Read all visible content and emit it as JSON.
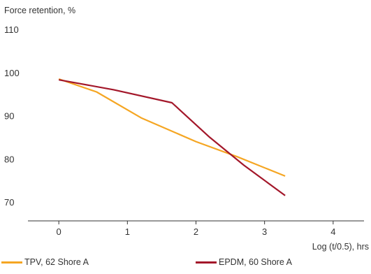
{
  "chart_data": {
    "type": "line",
    "title": "Force retention, %",
    "xlabel": "Log (t/0.5), hrs",
    "ylabel": "",
    "xlim": [
      -0.45,
      4.45
    ],
    "ylim": [
      64,
      110
    ],
    "xticks": [
      0,
      1,
      2,
      3,
      4
    ],
    "yticks": [
      70,
      80,
      90,
      100,
      110
    ],
    "grid": false,
    "legend_position": "bottom",
    "series": [
      {
        "name": "TPV, 62 Shore A",
        "color": "#f5a623",
        "points": [
          [
            0,
            98.5
          ],
          [
            0.55,
            95.5
          ],
          [
            1.2,
            89.5
          ],
          [
            2.0,
            84
          ],
          [
            2.6,
            80.5
          ],
          [
            3.3,
            76
          ]
        ]
      },
      {
        "name": "EPDM, 60 Shore A",
        "color": "#a3172a",
        "points": [
          [
            0,
            98.3
          ],
          [
            0.8,
            96
          ],
          [
            1.65,
            93
          ],
          [
            2.2,
            85
          ],
          [
            2.7,
            78.5
          ],
          [
            3.3,
            71.5
          ]
        ]
      }
    ]
  }
}
